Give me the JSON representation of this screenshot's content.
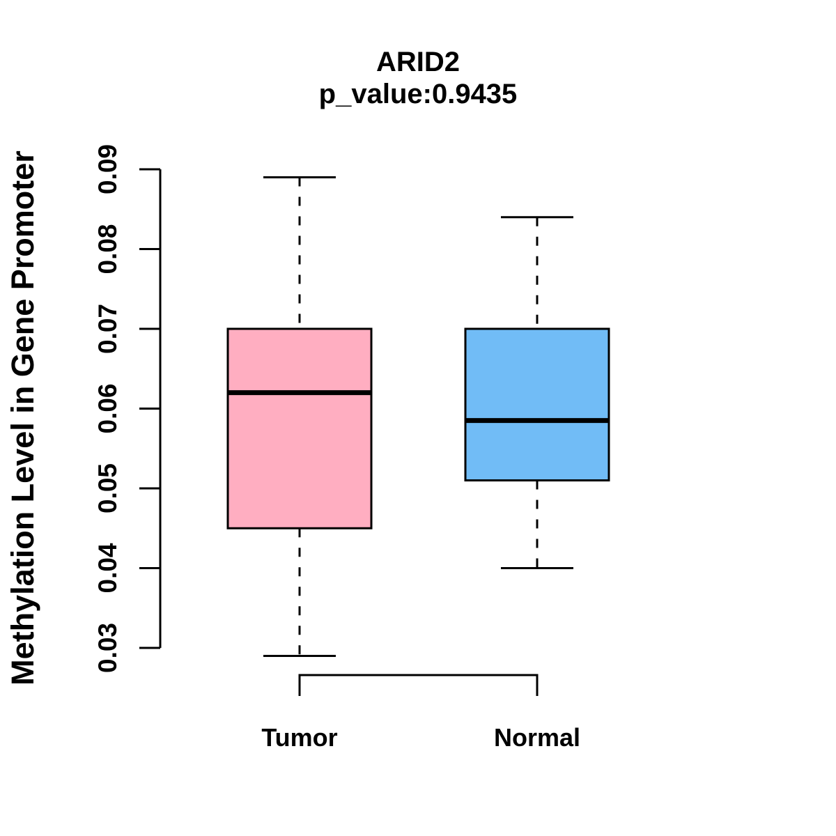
{
  "chart_data": {
    "type": "boxplot",
    "title": "ARID2",
    "subtitle": "p_value:0.9435",
    "p_value": 0.9435,
    "ylabel": "Methylation Level in Gene Promoter",
    "xlabel": "",
    "categories": [
      "Tumor",
      "Normal"
    ],
    "ylim": [
      0.029,
      0.09
    ],
    "yticks": [
      0.03,
      0.04,
      0.05,
      0.06,
      0.07,
      0.08,
      0.09
    ],
    "ytick_labels": [
      "0.03",
      "0.04",
      "0.05",
      "0.06",
      "0.07",
      "0.08",
      "0.09"
    ],
    "grid": false,
    "legend": "none",
    "whisker_style": "dashed",
    "series": [
      {
        "name": "Tumor",
        "color": "#FFAEC1",
        "lower_whisker": 0.029,
        "q1": 0.045,
        "median": 0.062,
        "q3": 0.07,
        "upper_whisker": 0.089
      },
      {
        "name": "Normal",
        "color": "#71BCF6",
        "lower_whisker": 0.04,
        "q1": 0.051,
        "median": 0.0585,
        "q3": 0.07,
        "upper_whisker": 0.084
      }
    ],
    "x_axis_bracket": {
      "from": "Tumor",
      "to": "Normal"
    }
  },
  "figure": {
    "background": "#FFFFFF",
    "line_color": "#000000"
  }
}
